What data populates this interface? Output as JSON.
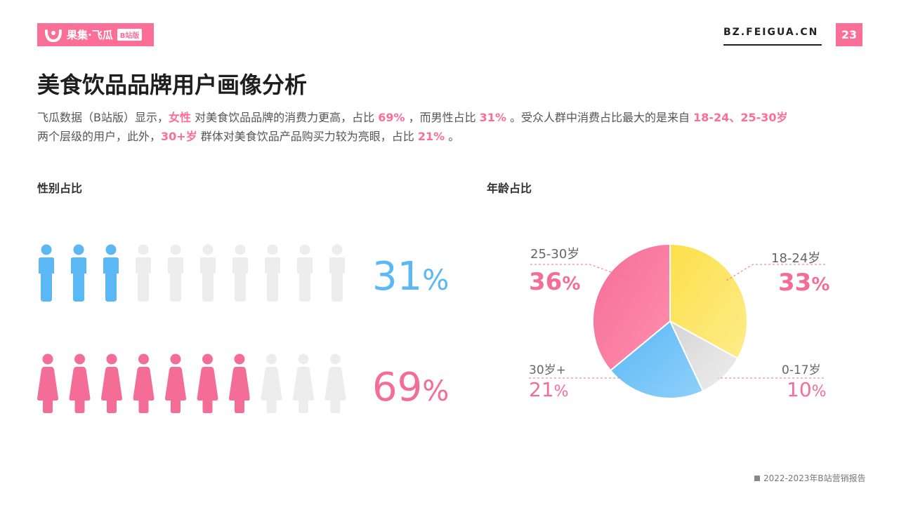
{
  "header": {
    "logo_text": "果集·飞瓜",
    "logo_badge": "B站版",
    "site": "BZ.FEIGUA.CN",
    "page_number": "23"
  },
  "title": "美食饮品品牌用户画像分析",
  "summary": {
    "p1": "飞瓜数据（B站版）显示，",
    "h1": "女性",
    "p2": " 对美食饮品品牌的消费力更高，占比 ",
    "h2": "69%",
    "p3": " ，而男性占比 ",
    "h3": "31%",
    "p4": " 。受众人群中消费占比最大的是来自 ",
    "h4": "18-24、25-30岁",
    "p5": "两个层级的用户，此外，",
    "h5": "30+岁",
    "p6": " 群体对美食饮品产品购买力较为亮眼，占比 ",
    "h6": "21%",
    "p7": " 。"
  },
  "gender_section": {
    "label": "性别占比"
  },
  "age_section": {
    "label": "年龄占比"
  },
  "colors": {
    "male": "#5ab8f5",
    "female": "#f46d97",
    "inactive": "#ededed",
    "brand": "#fb6e97"
  },
  "chart_data": [
    {
      "type": "pictogram",
      "title": "性别占比",
      "icons_total": 10,
      "series": [
        {
          "name": "男性",
          "value": 31,
          "display_number": "31",
          "unit": "%",
          "icon": "male-figure-icon",
          "color": "#5ab8f5"
        },
        {
          "name": "女性",
          "value": 69,
          "display_number": "69",
          "unit": "%",
          "icon": "female-figure-icon",
          "color": "#f46d97"
        }
      ]
    },
    {
      "type": "pie",
      "title": "年龄占比",
      "start_angle_deg": 0,
      "direction": "clockwise",
      "slices": [
        {
          "label": "18-24岁",
          "value": 33,
          "display_number": "33",
          "unit": "%",
          "color_from": "#fde04a",
          "color_to": "#fdec8a",
          "emphasis": true
        },
        {
          "label": "0-17岁",
          "value": 10,
          "display_number": "10",
          "unit": "%",
          "color_from": "#d4d4d4",
          "color_to": "#efefef",
          "emphasis": false
        },
        {
          "label": "30岁+",
          "value": 21,
          "display_number": "21",
          "unit": "%",
          "color_from": "#5ab8f5",
          "color_to": "#8fd0fa",
          "emphasis": false
        },
        {
          "label": "25-30岁",
          "value": 36,
          "display_number": "36",
          "unit": "%",
          "color_from": "#f46d97",
          "color_to": "#ff8fae",
          "emphasis": true
        }
      ]
    }
  ],
  "footer": {
    "text": "2022-2023年B站营销报告"
  }
}
